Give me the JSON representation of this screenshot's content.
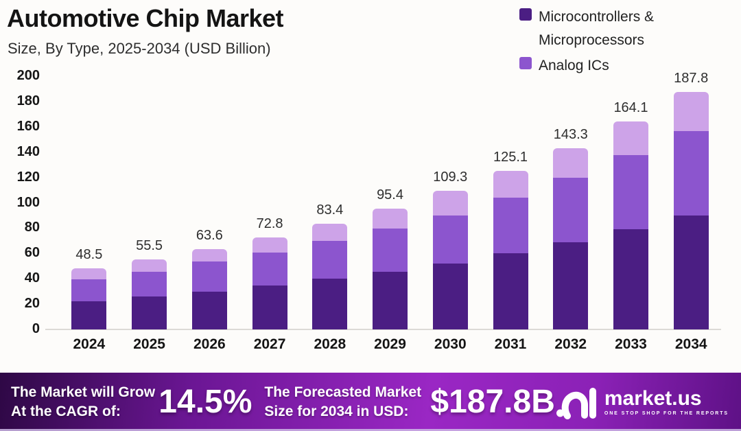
{
  "header": {
    "title": "Automotive Chip Market",
    "subtitle": "Size, By Type, 2025-2034 (USD Billion)"
  },
  "legend": {
    "items": [
      {
        "label": "Microcontrollers & Microprocessors",
        "color": "#4B1E83"
      },
      {
        "label": "Analog ICs",
        "color": "#8C55CE"
      }
    ]
  },
  "chart_data": {
    "type": "bar",
    "stacked": true,
    "title": "Automotive Chip Market Size, By Type, 2025-2034 (USD Billion)",
    "categories": [
      "2024",
      "2025",
      "2026",
      "2027",
      "2028",
      "2029",
      "2030",
      "2031",
      "2032",
      "2033",
      "2034"
    ],
    "totals": [
      48.5,
      55.5,
      63.6,
      72.8,
      83.4,
      95.4,
      109.3,
      125.1,
      143.3,
      164.1,
      187.8
    ],
    "series": [
      {
        "name": "Microcontrollers & Microprocessors",
        "color": "#4B1E83",
        "values": [
          22.5,
          26.0,
          30.0,
          34.5,
          40.0,
          45.5,
          52.0,
          60.0,
          69.0,
          79.0,
          90.0
        ]
      },
      {
        "name": "Analog ICs",
        "color": "#8C55CE",
        "values": [
          17.0,
          19.5,
          23.5,
          26.3,
          30.0,
          34.3,
          38.2,
          44.1,
          50.8,
          58.6,
          66.8
        ]
      },
      {
        "name": "",
        "color": "#CDA3E8",
        "values": [
          9.0,
          10.0,
          10.1,
          12.0,
          13.4,
          15.6,
          19.1,
          21.0,
          23.5,
          26.5,
          31.0
        ]
      }
    ],
    "xlabel": "",
    "ylabel": "",
    "ylim": [
      0,
      200
    ],
    "yticks": [
      0,
      20,
      40,
      60,
      80,
      100,
      120,
      140,
      160,
      180,
      200
    ],
    "grid": false,
    "legend_position": "top-right",
    "value_labels": "totals shown above each bar"
  },
  "footer": {
    "cagr_line1": "The Market will Grow",
    "cagr_line2": "At the CAGR of:",
    "cagr_value": "14.5%",
    "forecast_line1": "The Forecasted Market",
    "forecast_line2": "Size for 2034 in USD:",
    "forecast_value": "$187.8B",
    "brand": {
      "name": "market.us",
      "tagline": "ONE STOP SHOP FOR THE REPORTS"
    }
  }
}
